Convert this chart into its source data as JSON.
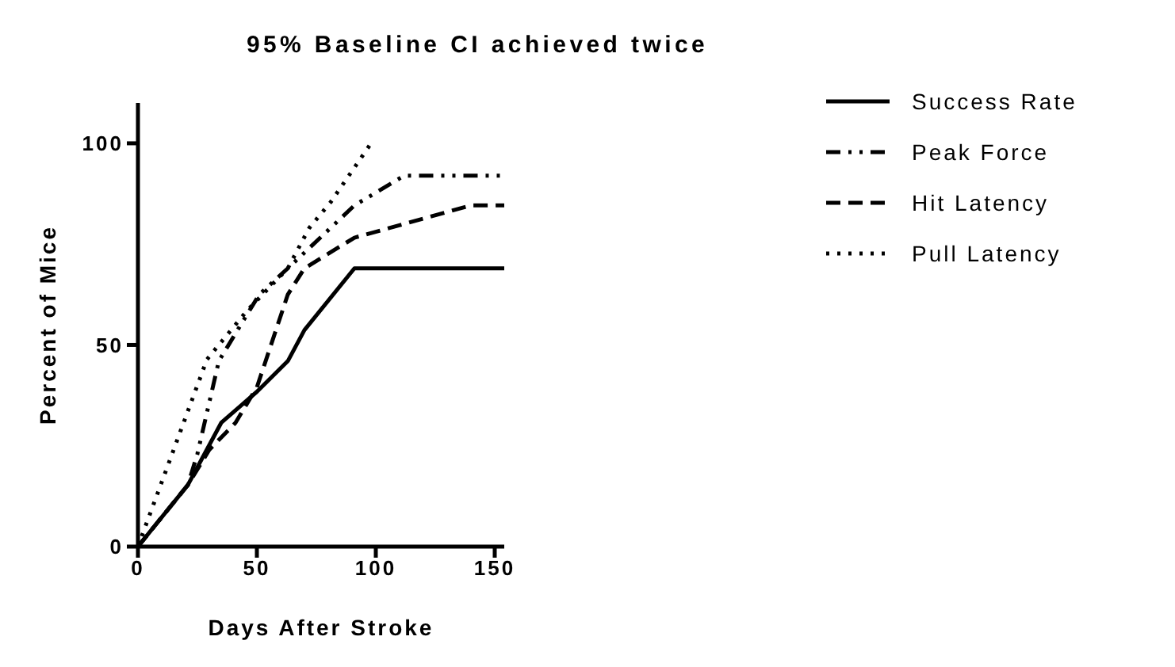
{
  "chart_data": {
    "type": "line",
    "title": "95% Baseline CI achieved twice",
    "xlabel": "Days After Stroke",
    "ylabel": "Percent of Mice",
    "xlim": [
      0,
      154
    ],
    "xticks": [
      0,
      50,
      100,
      150
    ],
    "ylim": [
      0,
      110
    ],
    "yticks": [
      0,
      50,
      100
    ],
    "legend": "right",
    "marker": "none",
    "series": [
      {
        "name": "Success Rate",
        "color": "#000000",
        "line_style": "solid",
        "x": [
          0,
          21,
          35,
          50,
          63,
          70,
          91,
          154
        ],
        "values": [
          0,
          15.3,
          30.7,
          38.4,
          46,
          53.7,
          69,
          69
        ]
      },
      {
        "name": "Peak Force",
        "color": "#000000",
        "line_style": "dashdot",
        "x": [
          0,
          21,
          25,
          34,
          43,
          51,
          63,
          91,
          112,
          154
        ],
        "values": [
          0,
          15.3,
          23,
          46,
          54.8,
          62.5,
          69,
          84.6,
          92,
          92
        ]
      },
      {
        "name": "Hit Latency",
        "color": "#000000",
        "line_style": "dashed",
        "x": [
          0,
          21,
          30,
          41,
          50,
          63,
          70,
          91,
          140,
          154
        ],
        "values": [
          0,
          15.3,
          24,
          30.7,
          39.5,
          62.5,
          69,
          76.6,
          84.6,
          84.6
        ]
      },
      {
        "name": "Pull Latency",
        "color": "#000000",
        "line_style": "dotted",
        "x": [
          0,
          29,
          34,
          46,
          63,
          72,
          81,
          98
        ],
        "values": [
          0,
          46.4,
          50,
          58.6,
          69,
          79,
          85.4,
          100
        ]
      }
    ]
  }
}
